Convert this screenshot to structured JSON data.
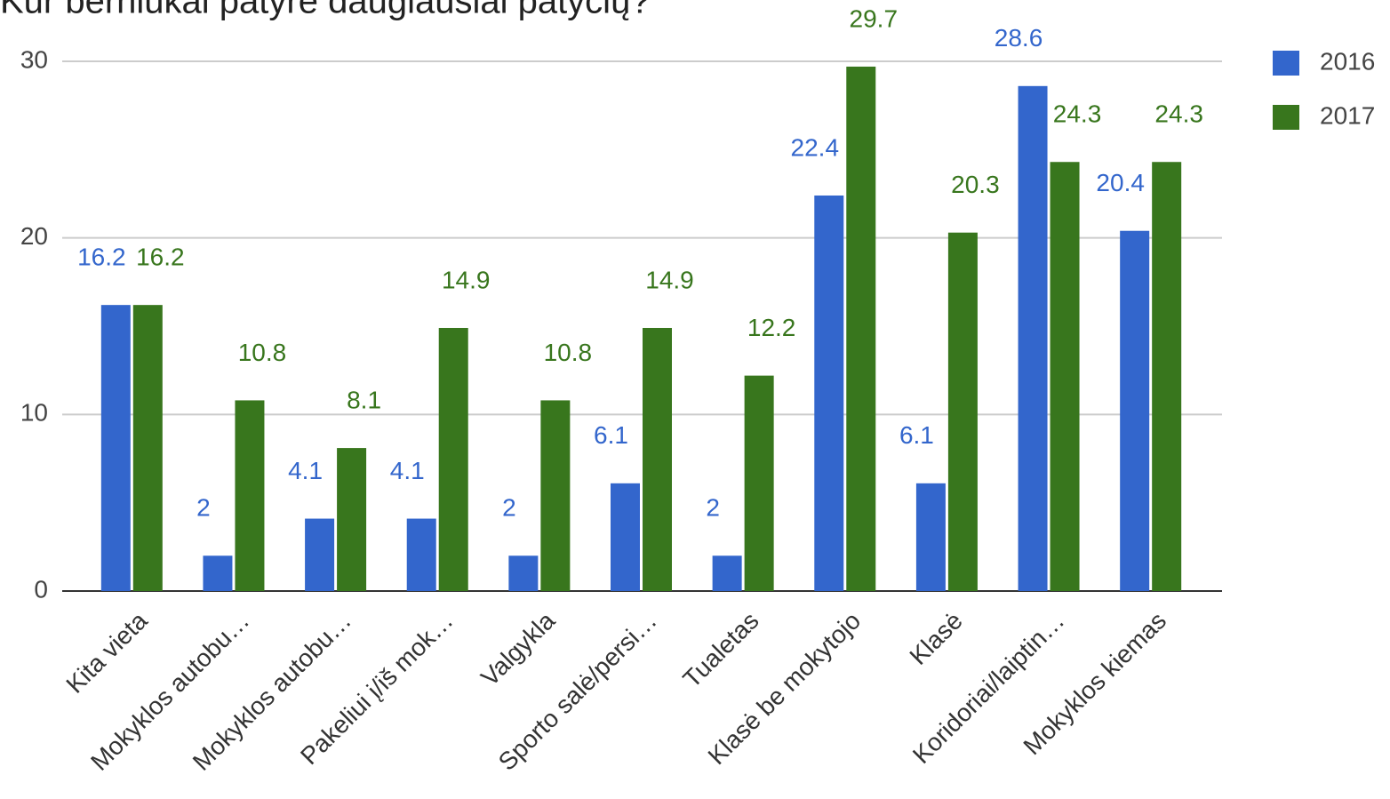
{
  "chart_data": {
    "type": "bar",
    "title": "Kur berniukai patyrė daugiausiai patyčių?",
    "categories": [
      "Kita vieta",
      "Mokyklos autobu…",
      "Mokyklos autobu…",
      "Pakeliui į/iš mok…",
      "Valgykla",
      "Sporto salė/persi…",
      "Tualetas",
      "Klasė be mokytojo",
      "Klasė",
      "Koridoriai/laiptin…",
      "Mokyklos kiemas"
    ],
    "series": [
      {
        "name": "2016",
        "color": "#3366cc",
        "values": [
          16.2,
          2,
          4.1,
          4.1,
          2,
          6.1,
          2,
          22.4,
          6.1,
          28.6,
          20.4
        ]
      },
      {
        "name": "2017",
        "color": "#38761d",
        "values": [
          16.2,
          10.8,
          8.1,
          14.9,
          10.8,
          14.9,
          12.2,
          29.7,
          20.3,
          24.3,
          24.3
        ]
      }
    ],
    "ylim": [
      0,
      30
    ],
    "yticks": [
      0,
      10,
      20,
      30
    ],
    "grid": true,
    "legend": "right"
  }
}
